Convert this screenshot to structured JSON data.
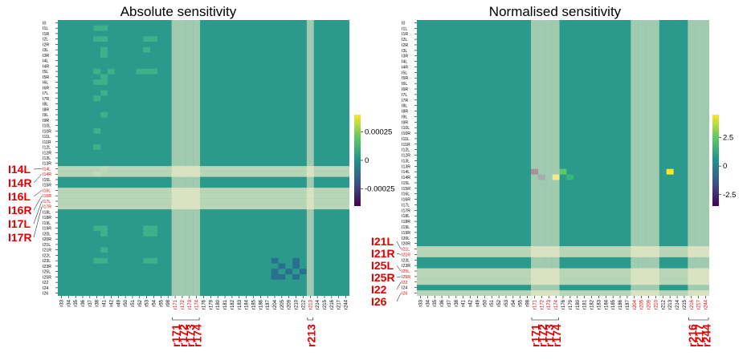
{
  "chart_data": [
    {
      "type": "heatmap",
      "title": "Absolute sensitivity",
      "rows": [
        "I0",
        "I1L",
        "I1R",
        "I2L",
        "I2R",
        "I3L",
        "I3R",
        "I4L",
        "I4R",
        "I5L",
        "I5R",
        "I6L",
        "I6R",
        "I7L",
        "I7R",
        "I8L",
        "I8R",
        "I9L",
        "I9R",
        "I10L",
        "I10R",
        "I11L",
        "I11R",
        "I12L",
        "I12R",
        "I13L",
        "I13R",
        "I14L",
        "I14R",
        "I15L",
        "I15R",
        "I16L",
        "I16R",
        "I17L",
        "I17R",
        "I18L",
        "I18R",
        "I19L",
        "I19R",
        "I20L",
        "I20R",
        "I21L",
        "I21R",
        "I22L",
        "I23L",
        "I23R",
        "I25L",
        "I25R",
        "I22",
        "I24",
        "I26"
      ],
      "columns": [
        "r33",
        "r34",
        "r35",
        "r36",
        "r37",
        "r38",
        "r41",
        "r42",
        "r49",
        "r50",
        "r51",
        "r52",
        "r53",
        "r54",
        "r55",
        "r98",
        "r171",
        "r172",
        "r173",
        "r174",
        "r176",
        "r179",
        "r180",
        "r181",
        "r182",
        "r183",
        "r184",
        "r185",
        "r186",
        "r187",
        "r204",
        "r205",
        "r209",
        "r210",
        "r212",
        "r213",
        "r214",
        "r215",
        "r216",
        "r217",
        "r244"
      ],
      "colorbar": {
        "ticks": [
          "0.00025",
          "0",
          "-0.00025"
        ],
        "min": -0.0004,
        "max": 0.0004
      },
      "highlighted_rows": [
        "I14L",
        "I14R",
        "I16L",
        "I16R",
        "I17L",
        "I17R"
      ],
      "highlighted_columns": [
        "r171",
        "r172",
        "r173",
        "r174",
        "r213"
      ],
      "left_annotations": [
        "I14L",
        "I14R",
        "I16L",
        "I16R",
        "I17L",
        "I17R"
      ],
      "bottom_annotations": [
        "r171",
        "r172",
        "r173",
        "r174",
        "r213"
      ]
    },
    {
      "type": "heatmap",
      "title": "Normalised sensitivity",
      "rows": [
        "I0",
        "I1L",
        "I1R",
        "I2L",
        "I2R",
        "I3L",
        "I3R",
        "I4L",
        "I4R",
        "I5L",
        "I5R",
        "I6L",
        "I6R",
        "I7L",
        "I7R",
        "I8L",
        "I8R",
        "I9L",
        "I9R",
        "I10L",
        "I10R",
        "I11L",
        "I11R",
        "I12L",
        "I12R",
        "I13L",
        "I13R",
        "I14L",
        "I14R",
        "I15L",
        "I15R",
        "I16L",
        "I16R",
        "I17L",
        "I17R",
        "I18L",
        "I18R",
        "I19L",
        "I19R",
        "I20L",
        "I20R",
        "I21L",
        "I21R",
        "I23L",
        "I23R",
        "I25L",
        "I25R",
        "I22",
        "I24",
        "I26"
      ],
      "columns": [
        "r33",
        "r34",
        "r35",
        "r36",
        "r37",
        "r38",
        "r41",
        "r42",
        "r49",
        "r50",
        "r51",
        "r52",
        "r53",
        "r54",
        "r55",
        "r98",
        "r171",
        "r172",
        "r173",
        "r174",
        "r176",
        "r179",
        "r180",
        "r181",
        "r182",
        "r183",
        "r184",
        "r185",
        "r186",
        "r187",
        "r204",
        "r205",
        "r209",
        "r210",
        "r212",
        "r213",
        "r214",
        "r215",
        "r216",
        "r217",
        "r244"
      ],
      "colorbar": {
        "ticks": [
          "2.5",
          "0",
          "-2.5"
        ],
        "min": -3.5,
        "max": 4.5
      },
      "highlighted_rows": [
        "I21L",
        "I21R",
        "I25L",
        "I25R",
        "I22",
        "I26"
      ],
      "highlighted_columns": [
        "r171",
        "r204",
        "r172",
        "r205",
        "r173",
        "r209",
        "r174",
        "r210",
        "r216",
        "r217",
        "r244"
      ],
      "left_annotations": [
        "I21L",
        "I21R",
        "I25L",
        "I25R",
        "I22",
        "I26"
      ],
      "bottom_annotations": [
        "r171",
        "r172",
        "r173",
        "r174",
        "r216",
        "r217",
        "r244"
      ]
    }
  ]
}
